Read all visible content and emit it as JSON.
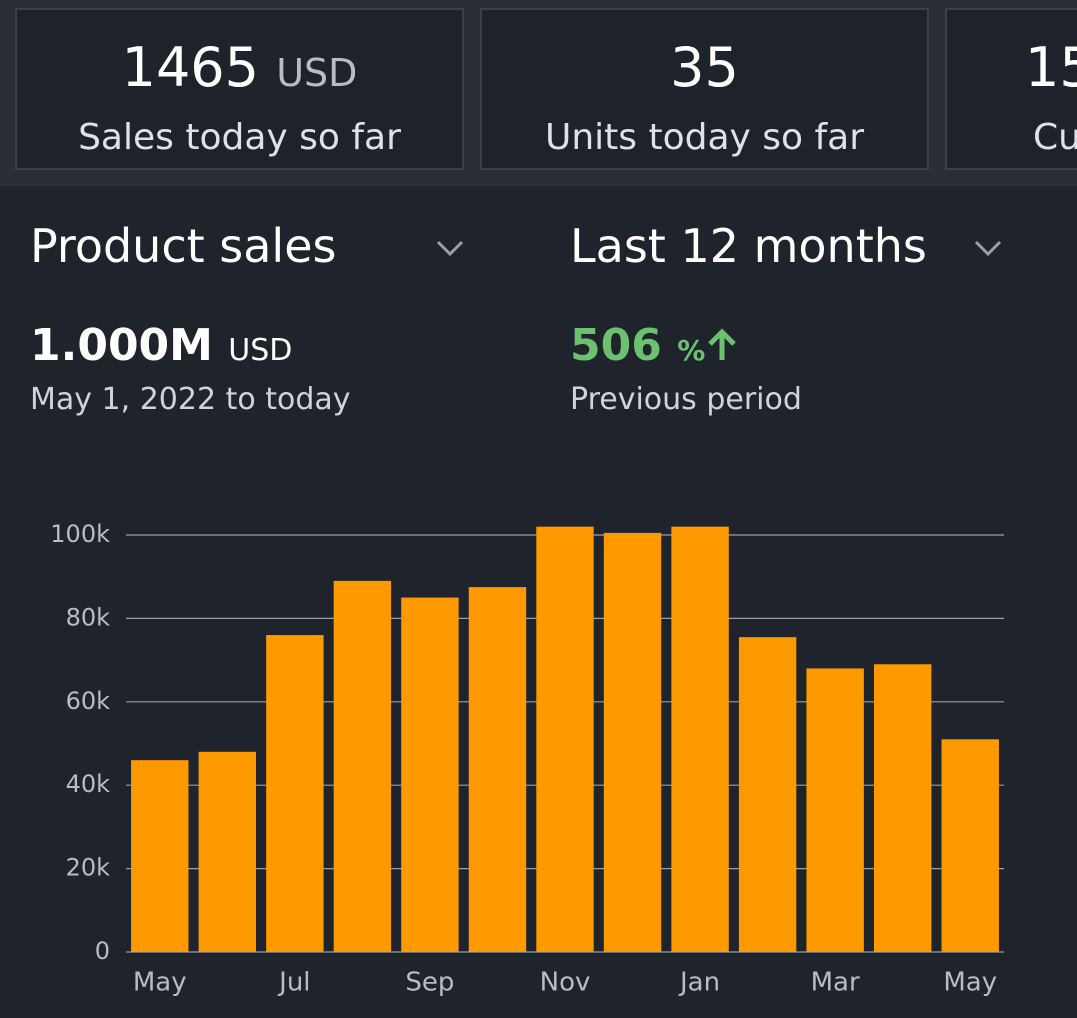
{
  "cards": [
    {
      "value": "1465",
      "unit": "USD",
      "label": "Sales today so far"
    },
    {
      "value": "35",
      "label": "Units today so far"
    },
    {
      "value": "15",
      "label": "Cu"
    }
  ],
  "dropdowns": {
    "metric": "Product sales",
    "period": "Last 12 months"
  },
  "summary": {
    "total": "1.000M",
    "total_unit": "USD",
    "range": "May 1, 2022 to today",
    "change": "506",
    "change_unit": "%",
    "change_label": "Previous period"
  },
  "chart_data": {
    "type": "bar",
    "categories": [
      "May",
      null,
      "Jul",
      null,
      "Sep",
      null,
      "Nov",
      null,
      "Jan",
      null,
      "Mar",
      null,
      "May"
    ],
    "values": [
      46000,
      48000,
      76000,
      89000,
      85000,
      87500,
      102000,
      100500,
      102000,
      75500,
      68000,
      69000,
      51000
    ],
    "color": "#ff9900",
    "ylim": [
      0,
      100000
    ],
    "yticks": [
      0,
      {
        "value": 20000,
        "label": "20k"
      },
      {
        "value": 40000,
        "label": "40k"
      },
      {
        "value": 60000,
        "label": "60k"
      },
      {
        "value": 80000,
        "label": "80k"
      },
      {
        "value": 100000,
        "label": "100k"
      }
    ],
    "grid": true
  }
}
